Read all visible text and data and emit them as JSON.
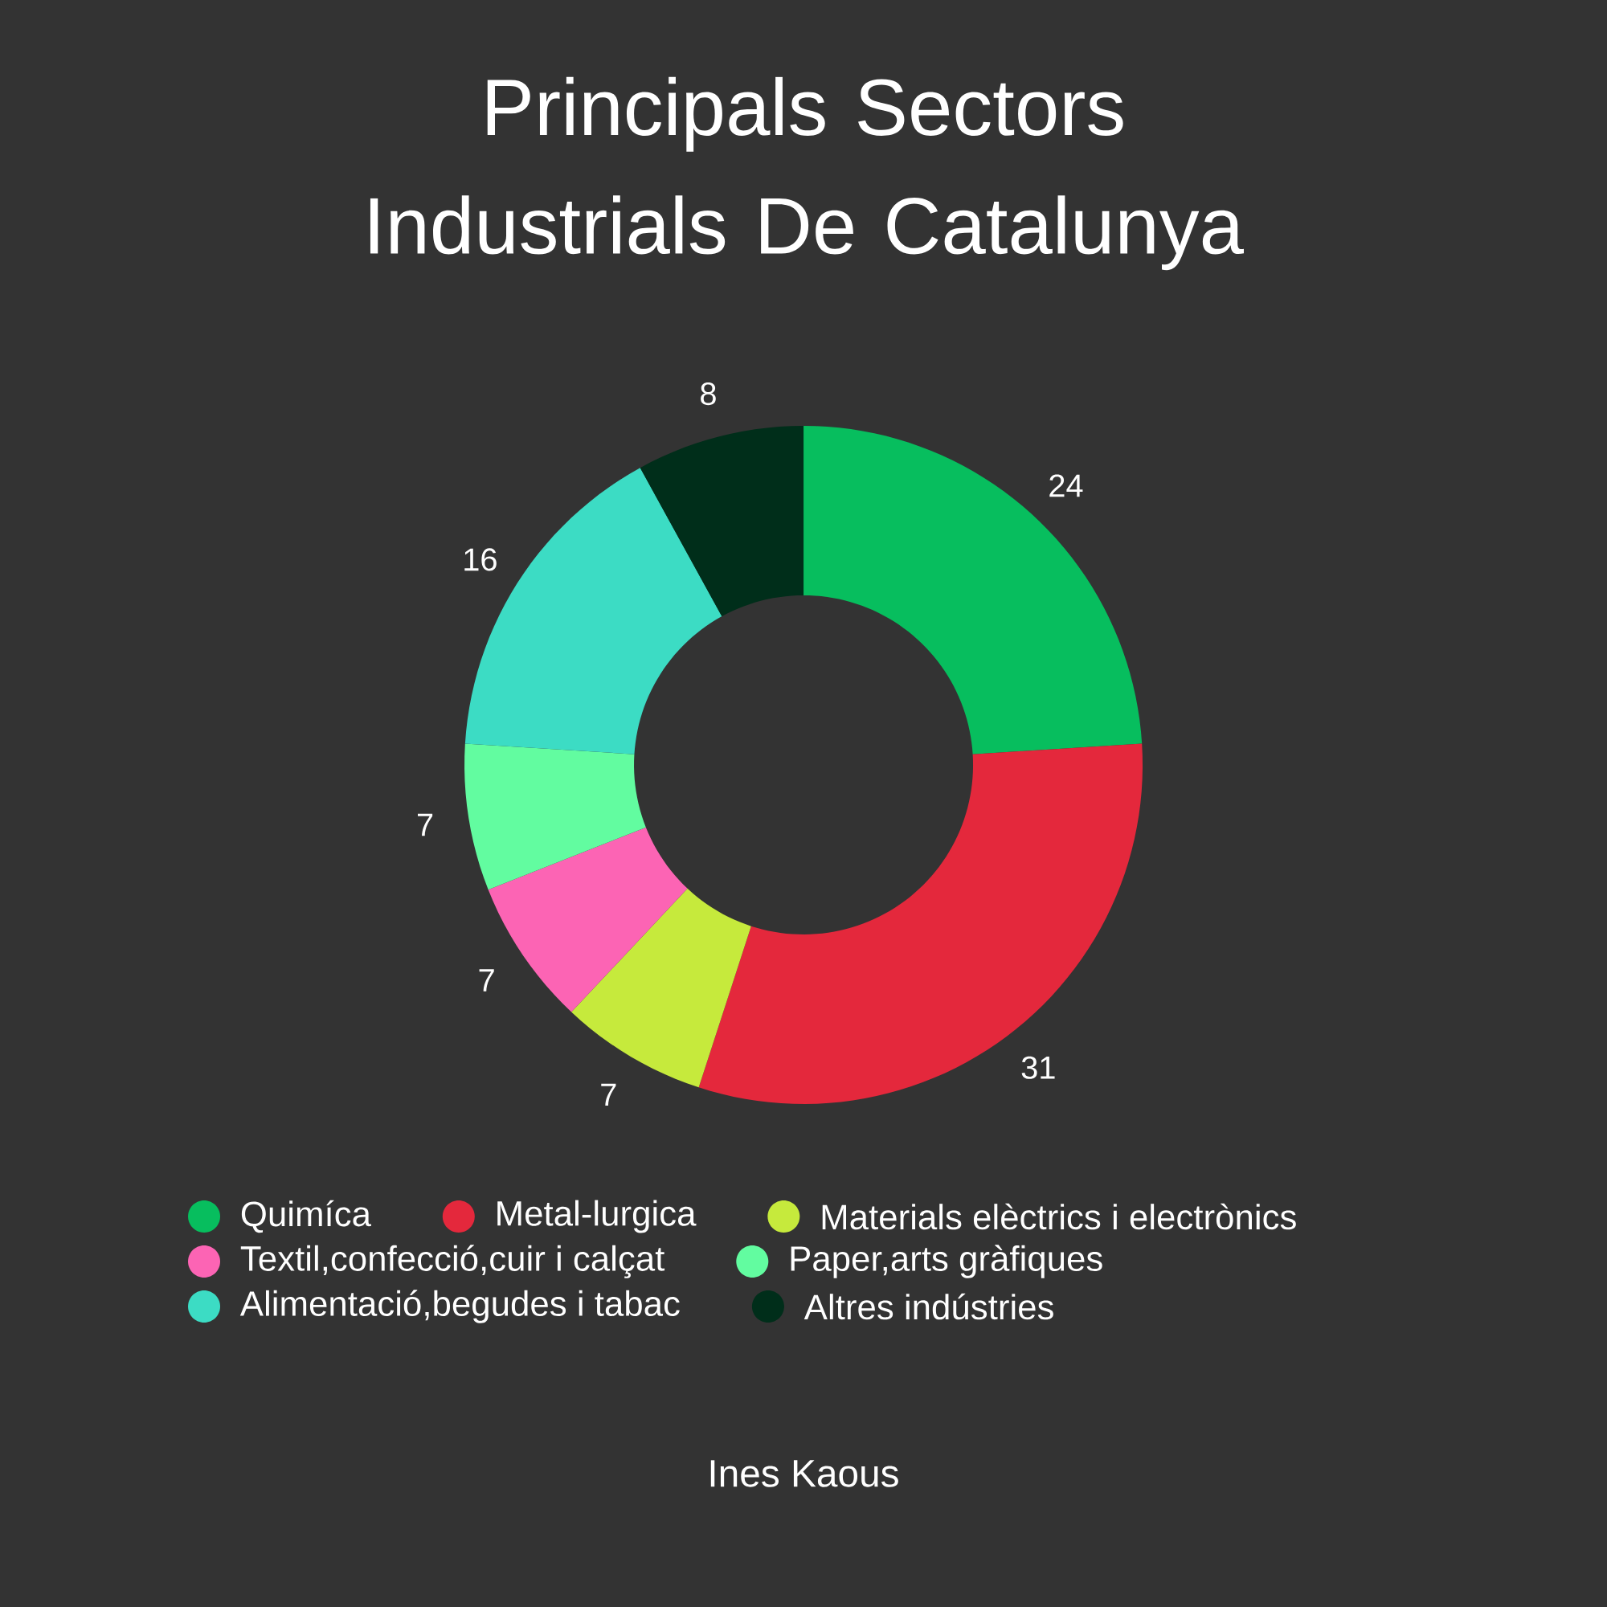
{
  "chart_data": {
    "type": "donut",
    "title": "Principals Sectors Industrials De Catalunya",
    "categories": [
      "Quimíca",
      "Metal-lurgica",
      "Materials elèctrics i electrònics",
      "Textil,confecció,cuir i calçat",
      "Paper,arts gràfiques",
      "Alimentació,begudes i tabac",
      "Altres indústries"
    ],
    "values": [
      24,
      31,
      7,
      7,
      7,
      16,
      8
    ],
    "colors": [
      "#07be5e",
      "#e4283c",
      "#c6ea3c",
      "#fc64b4",
      "#62fca0",
      "#3cdcc4",
      "#002e1a"
    ],
    "data_labels": true,
    "legend": "bottom",
    "annotations": [
      "Ines Kaous"
    ]
  }
}
